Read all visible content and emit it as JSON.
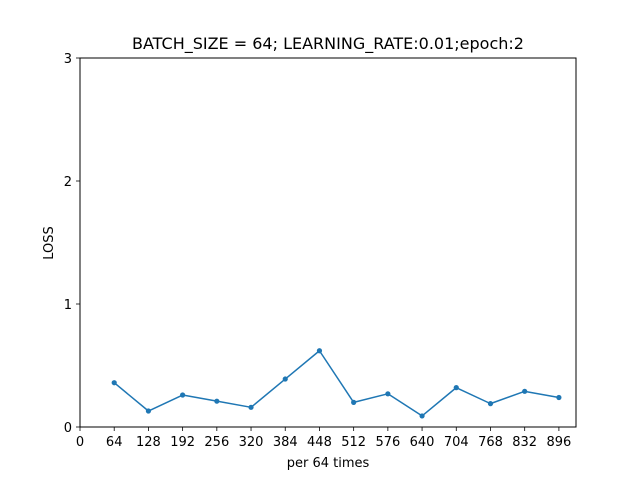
{
  "chart_data": {
    "type": "line",
    "title": "BATCH_SIZE = 64; LEARNING_RATE:0.01;epoch:2",
    "xlabel": "per 64 times",
    "ylabel": "LOSS",
    "xlim": [
      0,
      928
    ],
    "ylim": [
      0,
      3
    ],
    "xticks": [
      0,
      64,
      128,
      192,
      256,
      320,
      384,
      448,
      512,
      576,
      640,
      704,
      768,
      832,
      896
    ],
    "yticks": [
      0,
      1,
      2,
      3
    ],
    "grid": false,
    "series": [
      {
        "color": "#1f77b4",
        "x": [
          64,
          128,
          192,
          256,
          320,
          384,
          448,
          512,
          576,
          640,
          704,
          768,
          832,
          896
        ],
        "y": [
          0.36,
          0.13,
          0.26,
          0.21,
          0.16,
          0.39,
          0.62,
          0.2,
          0.27,
          0.09,
          0.32,
          0.19,
          0.29,
          0.24
        ]
      }
    ]
  }
}
